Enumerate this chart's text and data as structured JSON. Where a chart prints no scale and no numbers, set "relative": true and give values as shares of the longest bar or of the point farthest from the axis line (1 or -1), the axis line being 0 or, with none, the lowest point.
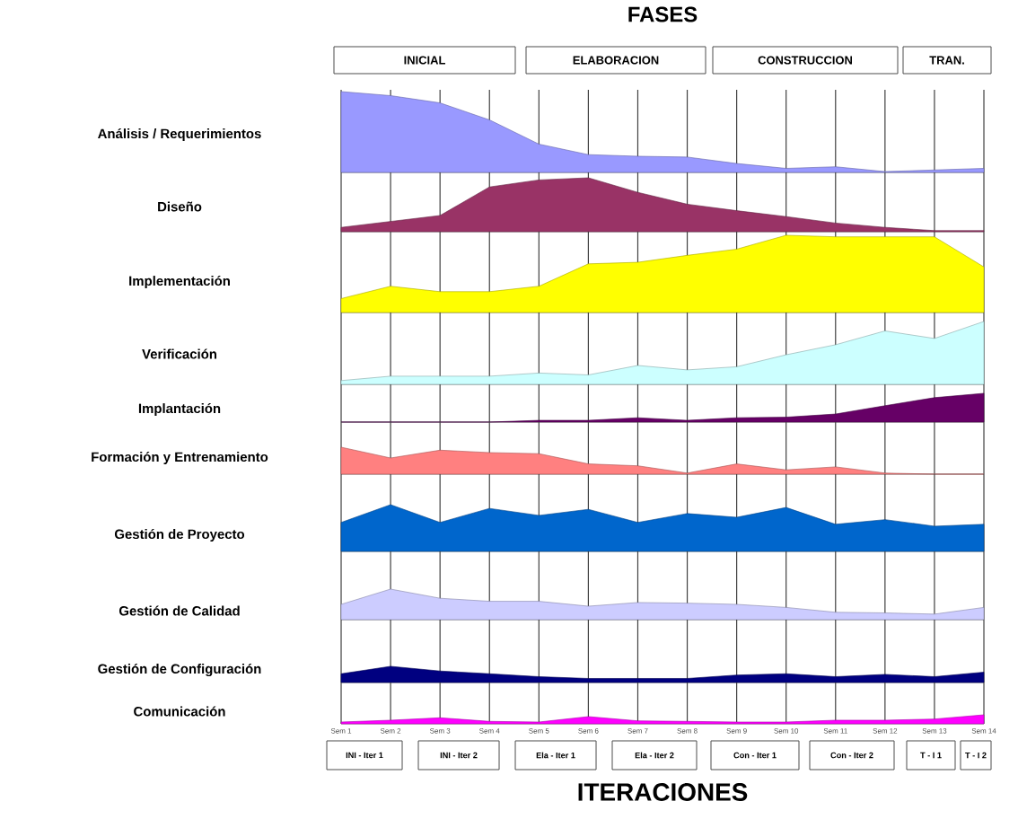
{
  "chart_data": [
    {
      "type": "area",
      "title": "FASES",
      "ylabel": "Análisis / Requerimientos",
      "annotations": [
        "INICIAL",
        "ELABORACION",
        "CONSTRUCCION",
        "TRAN."
      ],
      "relative": true,
      "grid": "x",
      "tick_labels": false,
      "categories": [
        null,
        null,
        null,
        null,
        null,
        null,
        null,
        null,
        null,
        null,
        null,
        null,
        null,
        null
      ],
      "series": [
        {
          "color": "#9999ff",
          "values": [
            1,
            0.95,
            0.86,
            0.65,
            0.35,
            0.22,
            0.2,
            0.19,
            0.11,
            0.05,
            0.07,
            0.01,
            0.03,
            0.05
          ]
        }
      ]
    },
    {
      "type": "area",
      "ylabel": "Diseño",
      "relative": true,
      "grid": "x",
      "tick_labels": false,
      "categories": [
        null,
        null,
        null,
        null,
        null,
        null,
        null,
        null,
        null,
        null,
        null,
        null,
        null,
        null
      ],
      "series": [
        {
          "color": "#993366",
          "values": [
            0.08,
            0.19,
            0.3,
            0.83,
            0.96,
            1,
            0.73,
            0.51,
            0.39,
            0.28,
            0.16,
            0.08,
            0.02,
            0.02
          ]
        }
      ]
    },
    {
      "type": "area",
      "ylabel": "Implementación",
      "relative": true,
      "grid": "x",
      "tick_labels": false,
      "categories": [
        null,
        null,
        null,
        null,
        null,
        null,
        null,
        null,
        null,
        null,
        null,
        null,
        null,
        null
      ],
      "series": [
        {
          "color": "#ffff00",
          "values": [
            0.18,
            0.34,
            0.27,
            0.27,
            0.34,
            0.63,
            0.65,
            0.74,
            0.82,
            1,
            0.98,
            0.98,
            0.98,
            0.59
          ]
        }
      ]
    },
    {
      "type": "area",
      "ylabel": "Verificación",
      "relative": true,
      "grid": "x",
      "tick_labels": false,
      "categories": [
        null,
        null,
        null,
        null,
        null,
        null,
        null,
        null,
        null,
        null,
        null,
        null,
        null,
        null
      ],
      "series": [
        {
          "color": "#ccffff",
          "values": [
            0.06,
            0.13,
            0.13,
            0.13,
            0.18,
            0.15,
            0.3,
            0.23,
            0.28,
            0.47,
            0.63,
            0.85,
            0.73,
            1
          ]
        }
      ]
    },
    {
      "type": "area",
      "ylabel": "Implantación",
      "relative": true,
      "grid": "x",
      "tick_labels": false,
      "categories": [
        null,
        null,
        null,
        null,
        null,
        null,
        null,
        null,
        null,
        null,
        null,
        null,
        null,
        null
      ],
      "series": [
        {
          "color": "#660066",
          "values": [
            0,
            0,
            0,
            0,
            0.06,
            0.06,
            0.15,
            0.06,
            0.15,
            0.17,
            0.28,
            0.57,
            0.85,
            1
          ]
        }
      ]
    },
    {
      "type": "area",
      "ylabel": "Formación y Entrenamiento",
      "relative": true,
      "grid": "x",
      "tick_labels": false,
      "categories": [
        null,
        null,
        null,
        null,
        null,
        null,
        null,
        null,
        null,
        null,
        null,
        null,
        null,
        null
      ],
      "series": [
        {
          "color": "#ff8080",
          "values": [
            1,
            0.6,
            0.89,
            0.8,
            0.76,
            0.38,
            0.31,
            0.04,
            0.38,
            0.16,
            0.27,
            0.04,
            0,
            0
          ]
        }
      ]
    },
    {
      "type": "area",
      "ylabel": "Gestión de Proyecto",
      "relative": true,
      "grid": "x",
      "tick_labels": false,
      "categories": [
        null,
        null,
        null,
        null,
        null,
        null,
        null,
        null,
        null,
        null,
        null,
        null,
        null,
        null
      ],
      "series": [
        {
          "color": "#0066cc",
          "values": [
            0.62,
            1,
            0.62,
            0.92,
            0.77,
            0.9,
            0.62,
            0.81,
            0.73,
            0.94,
            0.58,
            0.68,
            0.54,
            0.58
          ]
        }
      ]
    },
    {
      "type": "area",
      "ylabel": "Gestión de Calidad",
      "relative": true,
      "grid": "x",
      "tick_labels": false,
      "categories": [
        null,
        null,
        null,
        null,
        null,
        null,
        null,
        null,
        null,
        null,
        null,
        null,
        null,
        null
      ],
      "series": [
        {
          "color": "#ccccff",
          "values": [
            0.5,
            1,
            0.7,
            0.6,
            0.6,
            0.44,
            0.56,
            0.54,
            0.5,
            0.4,
            0.24,
            0.22,
            0.18,
            0.4
          ]
        }
      ]
    },
    {
      "type": "area",
      "ylabel": "Gestión de Configuración",
      "relative": true,
      "grid": "x",
      "tick_labels": false,
      "categories": [
        null,
        null,
        null,
        null,
        null,
        null,
        null,
        null,
        null,
        null,
        null,
        null,
        null,
        null
      ],
      "series": [
        {
          "color": "#000080",
          "values": [
            0.54,
            1,
            0.71,
            0.54,
            0.36,
            0.25,
            0.25,
            0.25,
            0.46,
            0.54,
            0.36,
            0.5,
            0.36,
            0.64
          ]
        }
      ]
    },
    {
      "type": "area",
      "ylabel": "Comunicación",
      "xlabel": "ITERACIONES",
      "annotations": [
        "INI - Iter 1",
        "INI - Iter 2",
        "Ela - Iter 1",
        "Ela - Iter 2",
        "Con - Iter 1",
        "Con - Iter 2",
        "T - I 1",
        "T - I 2"
      ],
      "relative": true,
      "grid": "x",
      "tick_labels": "x",
      "categories": [
        "Sem 1",
        "Sem 2",
        "Sem 3",
        "Sem 4",
        "Sem 5",
        "Sem 6",
        "Sem 7",
        "Sem 8",
        "Sem 9",
        "Sem 10",
        "Sem 11",
        "Sem 12",
        "Sem 13",
        "Sem 14"
      ],
      "series": [
        {
          "color": "#ff00ff",
          "values": [
            0.2,
            0.4,
            0.67,
            0.27,
            0.2,
            0.8,
            0.33,
            0.27,
            0.2,
            0.2,
            0.4,
            0.4,
            0.53,
            1
          ]
        }
      ]
    }
  ]
}
